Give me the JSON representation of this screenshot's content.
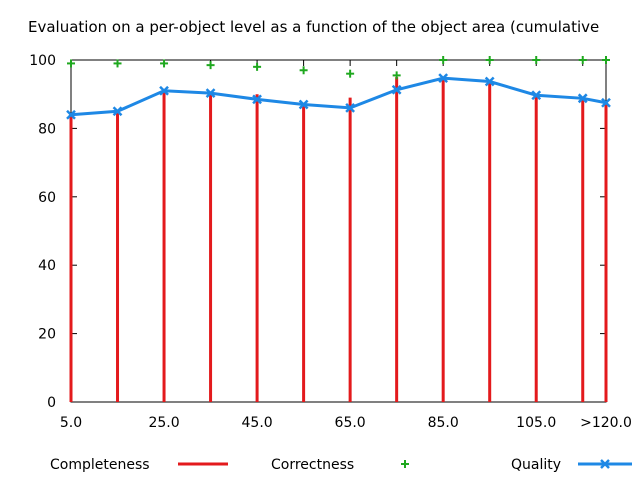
{
  "chart_data": {
    "type": "line",
    "title": "Evaluation on a per-object level as a function of the object area (cumulative",
    "xlabel": "",
    "ylabel": "",
    "x": [
      5.0,
      15.0,
      25.0,
      35.0,
      45.0,
      55.0,
      65.0,
      75.0,
      85.0,
      95.0,
      105.0,
      115.0,
      120.0
    ],
    "x_tick_values": [
      5.0,
      25.0,
      45.0,
      65.0,
      85.0,
      105.0,
      120.0
    ],
    "x_tick_labels": [
      "5.0",
      "25.0",
      "45.0",
      "65.0",
      "85.0",
      "105.0",
      ">120.0"
    ],
    "xlim": [
      5.0,
      120.0
    ],
    "ylim": [
      0,
      100
    ],
    "y_ticks": [
      0,
      20,
      40,
      60,
      80,
      100
    ],
    "grid": false,
    "legend_position": "bottom",
    "series": [
      {
        "name": "Completeness",
        "style": "impulses",
        "color": "#e31a1c",
        "values": [
          84,
          85,
          91,
          90,
          90,
          87,
          89,
          95,
          94.5,
          94,
          90,
          89,
          88
        ]
      },
      {
        "name": "Correctness",
        "style": "points",
        "marker": "plus",
        "color": "#1fa81f",
        "values": [
          99,
          99,
          99,
          98.5,
          98,
          97,
          96,
          95.5,
          100,
          100,
          100,
          100,
          100
        ]
      },
      {
        "name": "Quality",
        "style": "linespoints",
        "marker": "x",
        "color": "#1e88e5",
        "values": [
          84,
          85,
          91,
          90.3,
          88.5,
          87,
          86,
          91.3,
          94.7,
          93.7,
          89.7,
          88.8,
          87.5
        ]
      }
    ]
  }
}
